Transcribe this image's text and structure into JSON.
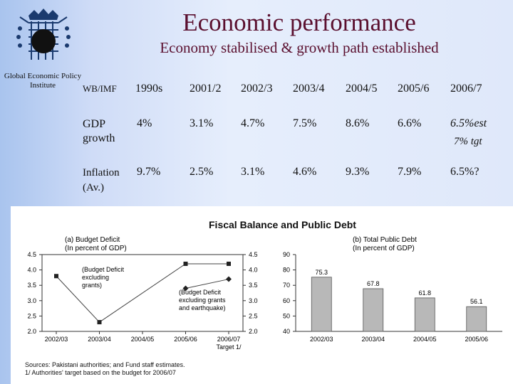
{
  "header": {
    "title": "Economic performance",
    "subtitle": "Economy stabilised & growth path established",
    "logo_caption": "Global Economic Policy Institute"
  },
  "table": {
    "header": [
      "WB/IMF",
      "1990s",
      "2001/2",
      "2002/3",
      "2003/4",
      "2004/5",
      "2005/6",
      "2006/7"
    ],
    "rows": [
      {
        "label": "GDP growth",
        "values": [
          "4%",
          "3.1%",
          "4.7%",
          "7.5%",
          "8.6%",
          "6.6%",
          "6.5%est"
        ],
        "extra": "7% tgt"
      },
      {
        "label": "Inflation (Av.)",
        "values": [
          "9.7%",
          "2.5%",
          "3.1%",
          "4.6%",
          "9.3%",
          "7.9%",
          "6.5%?"
        ]
      }
    ]
  },
  "panel": {
    "title": "Fiscal Balance and Public Debt",
    "sources": "Sources: Pakistani authorities; and Fund staff estimates.",
    "footnote": "1/ Authorities' target based on the budget for 2006/07"
  },
  "chart_data": [
    {
      "type": "line",
      "title": "(a) Budget Deficit",
      "subtitle": "(In percent of GDP)",
      "categories": [
        "2002/03",
        "2003/04",
        "2004/05",
        "2005/06",
        "2006/07"
      ],
      "category_note": "Target 1/",
      "ylim": [
        2.0,
        4.5
      ],
      "yticks": [
        2.0,
        2.5,
        3.0,
        3.5,
        4.0,
        4.5
      ],
      "grid": false,
      "series": [
        {
          "name": "(Budget Deficit excluding grants)",
          "values": [
            3.8,
            2.3,
            null,
            4.2,
            4.2
          ],
          "marker": "square"
        },
        {
          "name": "(Budget Deficit excluding grants and earthquake)",
          "values": [
            null,
            null,
            null,
            3.4,
            3.7
          ],
          "marker": "diamond"
        }
      ]
    },
    {
      "type": "bar",
      "title": "(b) Total Public Debt",
      "subtitle": "(In percent of GDP)",
      "categories": [
        "2002/03",
        "2003/04",
        "2004/05",
        "2005/06"
      ],
      "values": [
        75.3,
        67.8,
        61.8,
        56.1
      ],
      "ylim": [
        40,
        90
      ],
      "yticks": [
        40,
        50,
        60,
        70,
        80,
        90
      ],
      "bar_color": "#b8b8b8",
      "grid": false
    }
  ]
}
